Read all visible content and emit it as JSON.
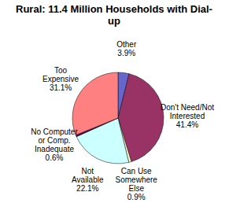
{
  "chart_data": {
    "type": "pie",
    "title": "Rural:  11.4 Million Households with Dial-up",
    "categories": [
      "Other",
      "Don't Need/Not Interested",
      "Can Use Somewhere Else",
      "Not Available",
      "No Computer or Comp. Inadequate",
      "Too Expensive"
    ],
    "values": [
      3.9,
      41.4,
      0.9,
      22.1,
      0.6,
      31.1
    ],
    "value_labels": [
      "3.9%",
      "41.4%",
      "0.9%",
      "22.1%",
      "0.6%",
      "31.1%"
    ],
    "colors": [
      "#6666cc",
      "#993366",
      "#ffffcc",
      "#ccffff",
      "#660066",
      "#ff8080"
    ],
    "data_labels": true
  }
}
